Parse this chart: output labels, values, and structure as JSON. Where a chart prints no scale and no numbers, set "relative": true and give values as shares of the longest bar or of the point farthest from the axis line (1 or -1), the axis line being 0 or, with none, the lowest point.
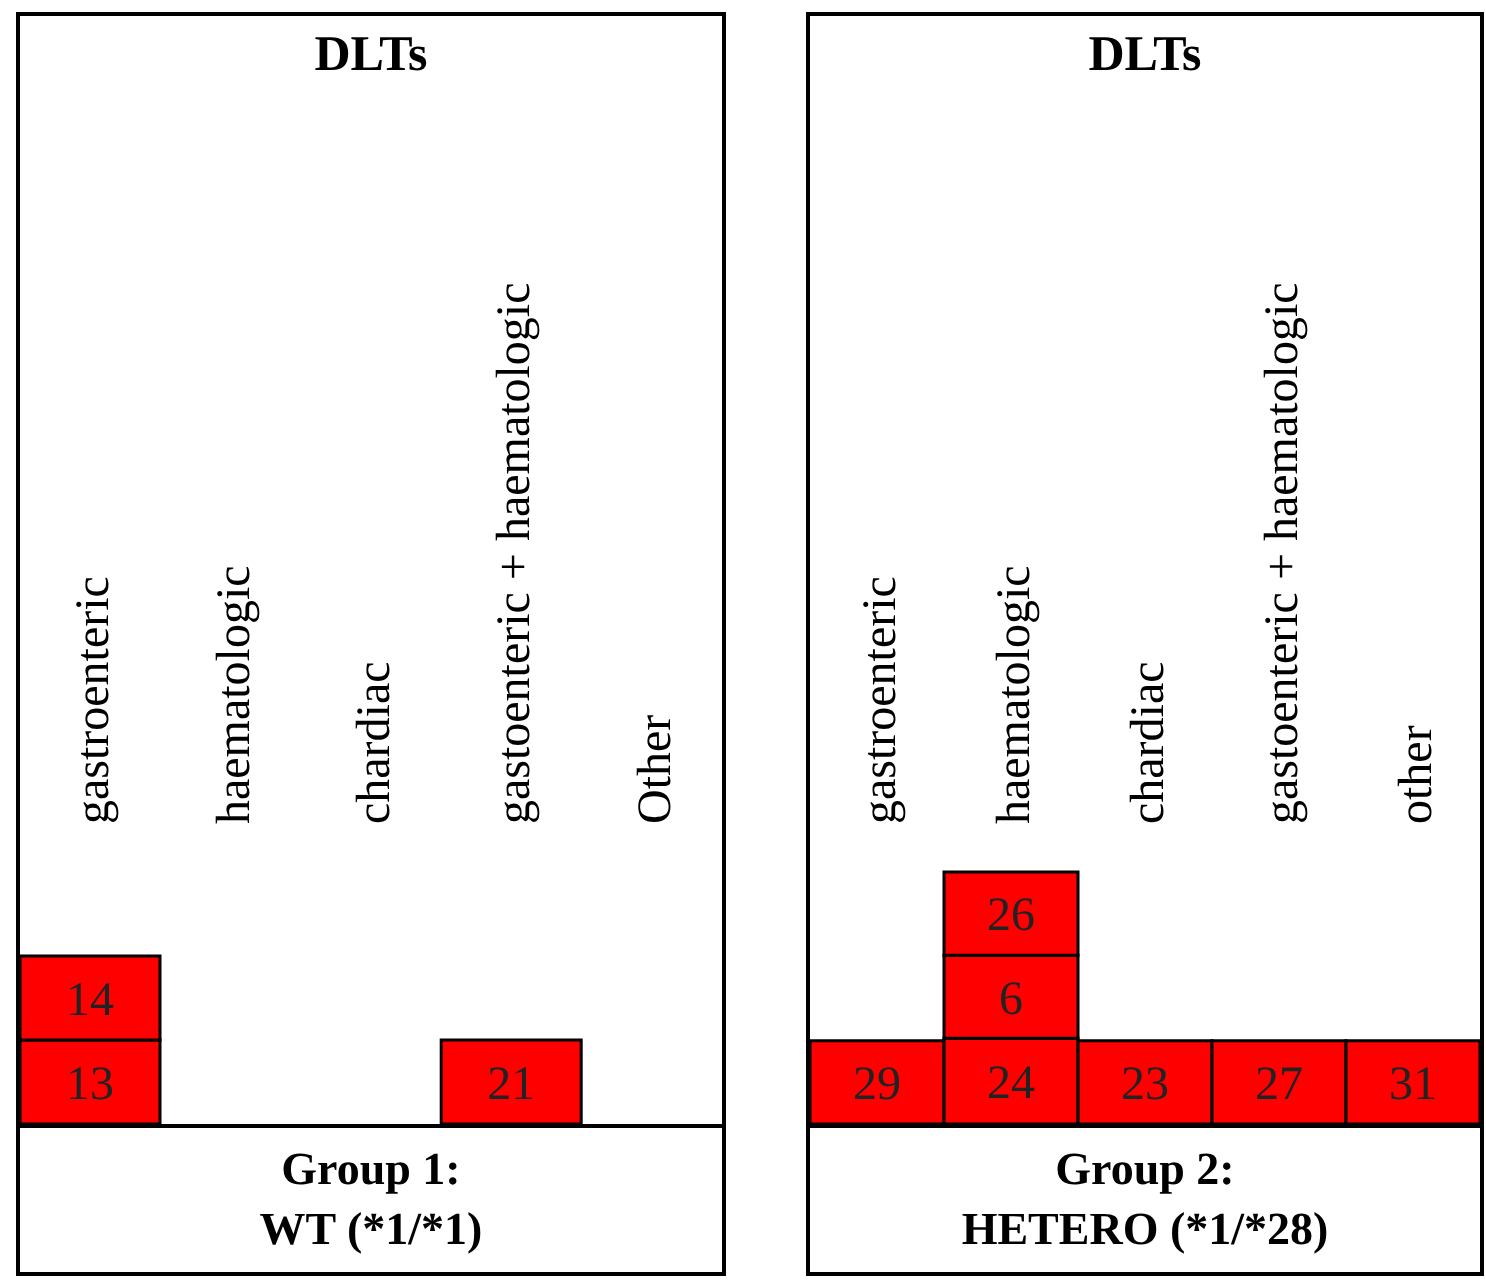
{
  "chart_data": [
    {
      "type": "bar",
      "title": "DLTs",
      "xlabel": "Group 1:\nWT (*1/*1)",
      "categories": [
        "gastroenteric",
        "haematologic",
        "chardiac",
        "gastoenteric + haematologic",
        "Other"
      ],
      "stacked": true,
      "relative": true,
      "series": [
        {
          "color": "#ff0000",
          "values": [
            0.5,
            null,
            null,
            0.5,
            null
          ]
        },
        {
          "color": "#ff0000",
          "values": [
            0.5,
            null,
            null,
            null,
            null
          ]
        }
      ],
      "annotations": [
        "13",
        "21",
        "14"
      ]
    },
    {
      "type": "bar",
      "title": "DLTs",
      "xlabel": "Group 2:\nHETERO (*1/*28)",
      "categories": [
        "gastroenteric",
        "haematologic",
        "chardiac",
        "gastoenteric + haematologic",
        "other"
      ],
      "stacked": true,
      "relative": true,
      "series": [
        {
          "color": "#ff0000",
          "values": [
            0.33,
            0.34,
            0.33,
            0.33,
            0.33
          ]
        },
        {
          "color": "#ff0000",
          "values": [
            null,
            0.33,
            null,
            null,
            null
          ]
        },
        {
          "color": "#ff0000",
          "values": [
            null,
            0.33,
            null,
            null,
            null
          ]
        }
      ],
      "annotations": [
        "29",
        "24",
        "23",
        "27",
        "31",
        "6",
        "26"
      ]
    }
  ]
}
